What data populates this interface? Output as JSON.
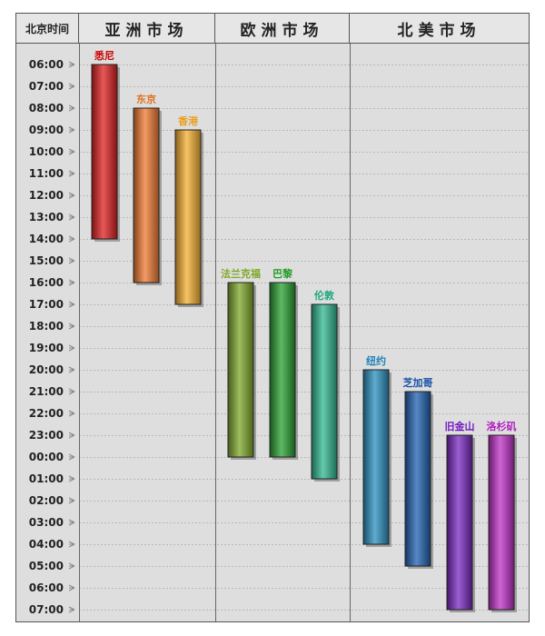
{
  "header": {
    "time_col": "北京时间",
    "regions": [
      "亚洲市场",
      "欧洲市场",
      "北美市场"
    ]
  },
  "colors": {
    "grid": "#b8b8b8",
    "separator": "#666666",
    "frame": "#555555",
    "background": "#dedede"
  },
  "chart_data": {
    "type": "bar",
    "orientation": "vertical-range",
    "y_axis_label": "北京时间",
    "y_ticks": [
      "06:00",
      "07:00",
      "08:00",
      "09:00",
      "10:00",
      "11:00",
      "12:00",
      "13:00",
      "14:00",
      "15:00",
      "16:00",
      "17:00",
      "18:00",
      "19:00",
      "20:00",
      "21:00",
      "22:00",
      "23:00",
      "00:00",
      "01:00",
      "02:00",
      "03:00",
      "04:00",
      "05:00",
      "06:00",
      "07:00"
    ],
    "groups": [
      "亚洲市场",
      "欧洲市场",
      "北美市场"
    ],
    "markets": [
      {
        "name": "悉尼",
        "group": 0,
        "start": "06:00",
        "end": "14:00",
        "color": "#e02020",
        "label_color": "#cc0000"
      },
      {
        "name": "东京",
        "group": 0,
        "start": "08:00",
        "end": "16:00",
        "color": "#f07a30",
        "label_color": "#e07020"
      },
      {
        "name": "香港",
        "group": 0,
        "start": "09:00",
        "end": "17:00",
        "color": "#f5b030",
        "label_color": "#e8a020"
      },
      {
        "name": "法兰克福",
        "group": 1,
        "start": "16:00",
        "end": "00:00",
        "color": "#7ea82a",
        "label_color": "#7ea82a"
      },
      {
        "name": "巴黎",
        "group": 1,
        "start": "16:00",
        "end": "00:00",
        "color": "#28a030",
        "label_color": "#1e9a20"
      },
      {
        "name": "伦敦",
        "group": 1,
        "start": "17:00",
        "end": "01:00",
        "color": "#30b890",
        "label_color": "#20a880"
      },
      {
        "name": "纽约",
        "group": 2,
        "start": "20:00",
        "end": "04:00",
        "color": "#2a90c0",
        "label_color": "#2080b8"
      },
      {
        "name": "芝加哥",
        "group": 2,
        "start": "21:00",
        "end": "05:00",
        "color": "#2060b0",
        "label_color": "#1850a8"
      },
      {
        "name": "旧金山",
        "group": 2,
        "start": "23:00",
        "end": "07:00",
        "color": "#7a28c0",
        "label_color": "#7018c0"
      },
      {
        "name": "洛杉矶",
        "group": 2,
        "start": "23:00",
        "end": "07:00",
        "color": "#c030c8",
        "label_color": "#b020c0"
      }
    ]
  }
}
